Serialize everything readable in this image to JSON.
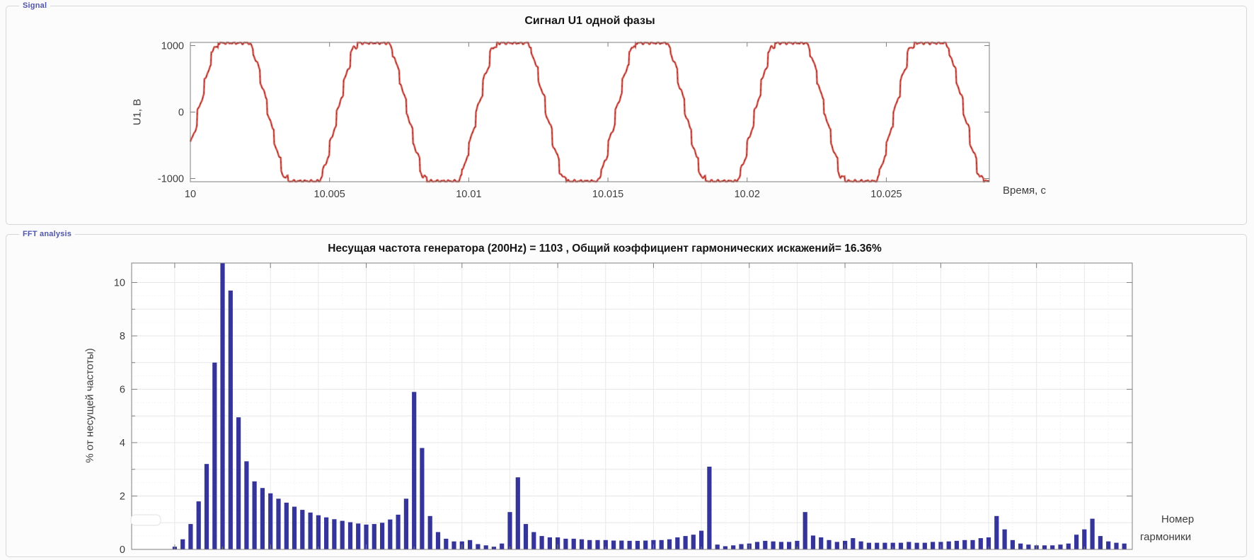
{
  "panels": {
    "signal": {
      "label": "Signal"
    },
    "fft": {
      "label": "FFT analysis"
    }
  },
  "chart_data": [
    {
      "id": "signal",
      "type": "line",
      "title": "Сигнал U1 одной фазы",
      "xlabel": "Время, с",
      "ylabel": "U1, В",
      "x_tick_labels": [
        "10",
        "10.005",
        "10.01",
        "10.015",
        "10.02",
        "10.025"
      ],
      "x_tick_values": [
        10,
        10.005,
        10.01,
        10.015,
        10.02,
        10.025
      ],
      "y_tick_values": [
        1000,
        0,
        -1000
      ],
      "xlim": [
        10,
        10.0287
      ],
      "ylim": [
        -1048,
        1048
      ],
      "grid": false,
      "line_color": "#c7463f",
      "line_halo_color": "#efb9b4",
      "line_dark_color": "#992e28",
      "waveform": {
        "description": "stepped multilevel quasi-sine phase voltage, flat-clipped at top and bottom",
        "frequency_hz": 200,
        "period_s": 0.005,
        "visible_cycles": 5.74,
        "flat_top_level_v": 1040,
        "underlying_amplitude_v": 1500,
        "phase_rad": -0.305,
        "hold_step_s": 0.00025
      }
    },
    {
      "id": "fft",
      "type": "bar",
      "title": "Несущая частота генератора (200Hz) = 1103 , Общий коэффициент гармонических искажений= 16.36%",
      "carrier_frequency_label": "200Hz",
      "carrier_magnitude": "1103",
      "thd": "16.36%",
      "xlabel": "Номер гармоники",
      "xlabel_lines": [
        "Номер",
        "гармоники"
      ],
      "ylabel": "% от несущей частоты)",
      "x_tick_values": [
        0,
        2,
        4,
        6,
        8,
        10,
        12,
        14,
        16,
        18,
        20
      ],
      "y_tick_values": [
        0,
        2,
        4,
        6,
        8,
        10
      ],
      "xlim": [
        -0.9,
        20
      ],
      "ylim": [
        0,
        10.73
      ],
      "grid": true,
      "bar_color": "#34349a",
      "bar_x_start": 0,
      "bar_x_step": 0.166667,
      "note": "bars every 1/6 harmonic (33.3 Hz bins); fundamental bar at x=1 is clipped by the axis top",
      "values": [
        0.1,
        0.38,
        0.95,
        1.8,
        3.2,
        7.0,
        10.73,
        9.7,
        4.95,
        3.3,
        2.55,
        2.3,
        2.1,
        1.9,
        1.75,
        1.6,
        1.48,
        1.38,
        1.28,
        1.2,
        1.13,
        1.07,
        1.02,
        0.97,
        0.93,
        0.95,
        1.0,
        1.12,
        1.3,
        1.9,
        5.9,
        3.8,
        1.25,
        0.65,
        0.4,
        0.3,
        0.3,
        0.35,
        0.2,
        0.15,
        0.1,
        0.22,
        1.4,
        2.7,
        0.95,
        0.65,
        0.5,
        0.45,
        0.45,
        0.4,
        0.4,
        0.38,
        0.35,
        0.35,
        0.35,
        0.33,
        0.33,
        0.32,
        0.32,
        0.33,
        0.35,
        0.35,
        0.38,
        0.45,
        0.5,
        0.55,
        0.7,
        3.1,
        0.18,
        0.12,
        0.15,
        0.2,
        0.22,
        0.28,
        0.32,
        0.3,
        0.28,
        0.28,
        0.32,
        1.4,
        0.52,
        0.45,
        0.35,
        0.28,
        0.32,
        0.42,
        0.3,
        0.25,
        0.25,
        0.25,
        0.25,
        0.25,
        0.28,
        0.25,
        0.25,
        0.28,
        0.28,
        0.3,
        0.32,
        0.35,
        0.35,
        0.42,
        0.45,
        1.25,
        0.75,
        0.35,
        0.22,
        0.18,
        0.15,
        0.15,
        0.15,
        0.18,
        0.22,
        0.55,
        0.75,
        1.15,
        0.5,
        0.3,
        0.25,
        0.22
      ]
    }
  ]
}
